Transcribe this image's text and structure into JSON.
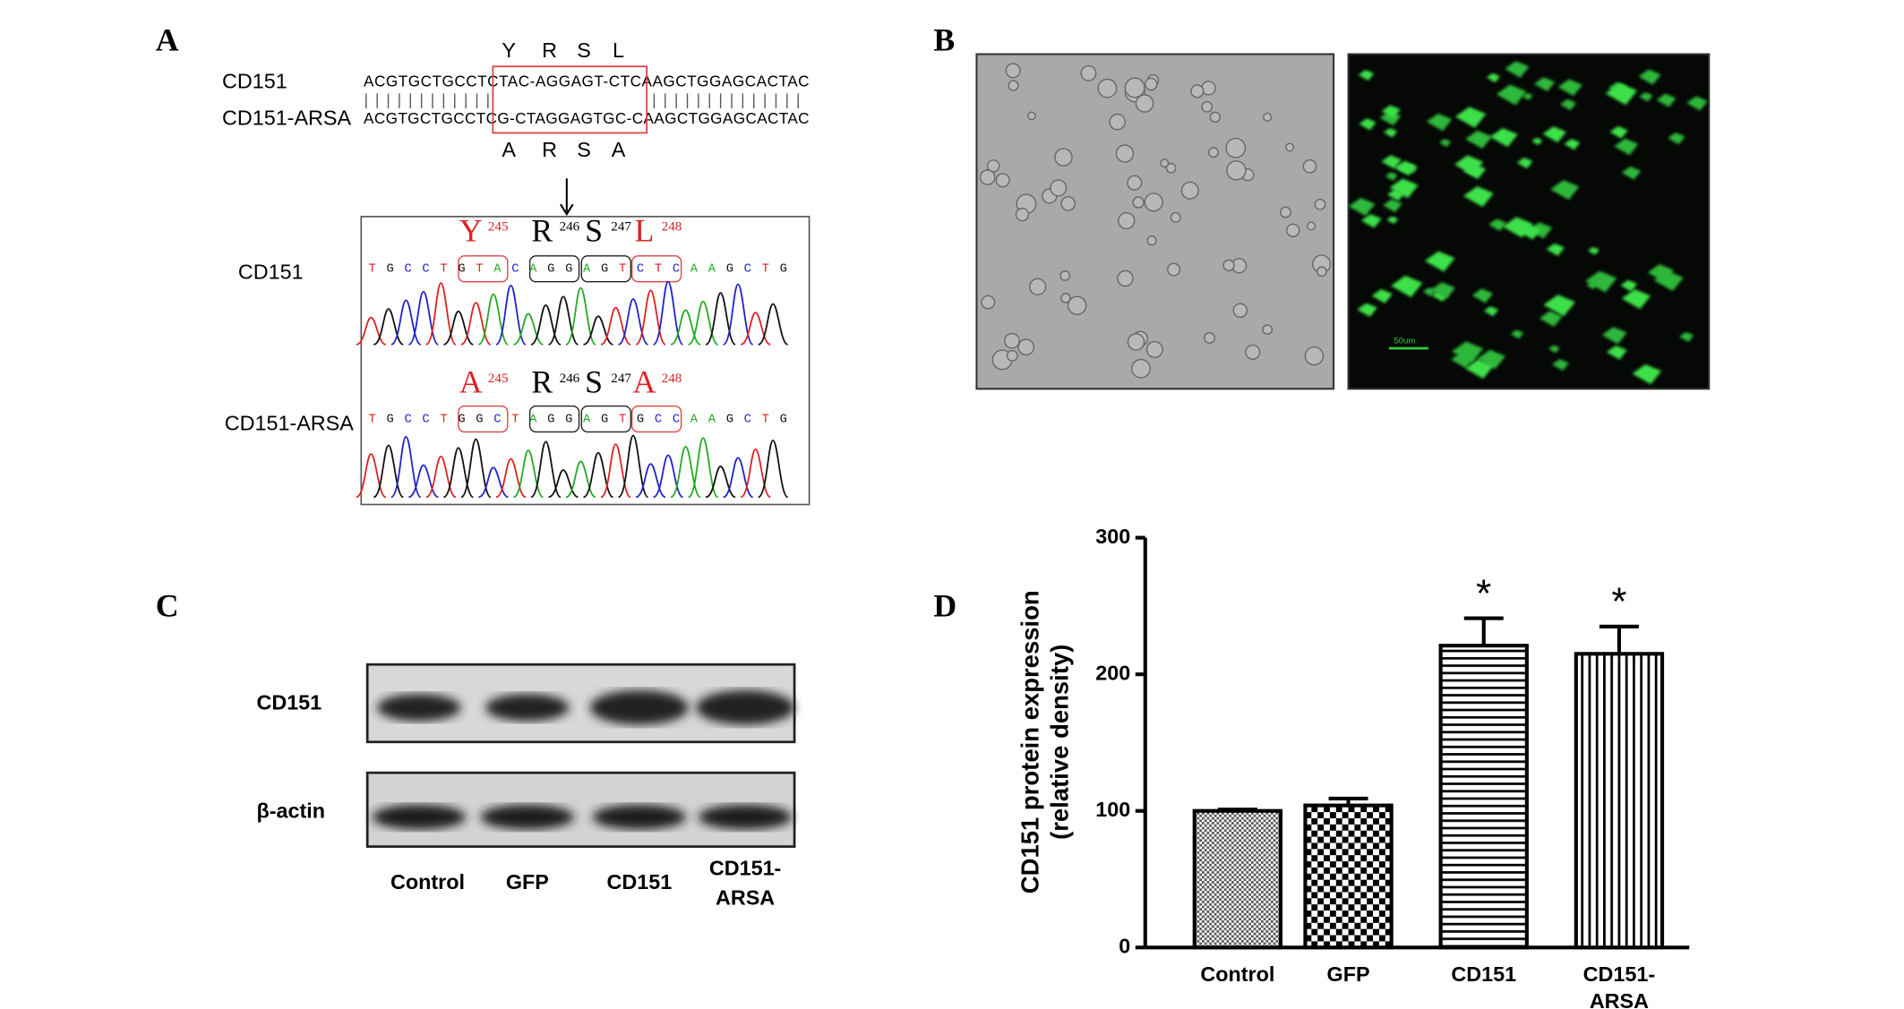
{
  "panels": {
    "A": {
      "label": "A",
      "seq_labels": [
        "CD151",
        "CD151-ARSA"
      ],
      "seq1": "ACGTGCTGCCTCTAC-AGGAGT-CTCAAGCTGGAGCACTAC",
      "seq2": "ACGTGCTGCCTCG-CTAGGAGTGC-CAAGCTGGAGCACTAC",
      "aa_top": [
        "Y",
        "R",
        "S",
        "L"
      ],
      "aa_bottom": [
        "A",
        "R",
        "S",
        "A"
      ],
      "chrom_labels": [
        "CD151",
        "CD151-ARSA"
      ],
      "chrom1_residues": [
        {
          "aa": "Y",
          "pos": "245"
        },
        {
          "aa": "R",
          "pos": "246"
        },
        {
          "aa": "S",
          "pos": "247"
        },
        {
          "aa": "L",
          "pos": "248"
        }
      ],
      "chrom2_residues": [
        {
          "aa": "A",
          "pos": "245"
        },
        {
          "aa": "R",
          "pos": "246"
        },
        {
          "aa": "S",
          "pos": "247"
        },
        {
          "aa": "A",
          "pos": "248"
        }
      ],
      "chrom1_bases": "TGCCTGTACAGGAGTCTCAAGCTG",
      "chrom2_bases": "TGCCTGGCTAGGAGTGCCAAGCTG"
    },
    "B": {
      "label": "B",
      "scale_bar": "50um"
    },
    "C": {
      "label": "C",
      "rows": [
        "CD151",
        "β-actin"
      ],
      "lanes": [
        "Control",
        "GFP",
        "CD151",
        "CD151-\nARSA"
      ]
    },
    "D": {
      "label": "D"
    }
  },
  "chart_data": {
    "type": "bar",
    "ylabel": [
      "CD151 protein expression",
      "(relative density)"
    ],
    "categories": [
      "Control",
      "GFP",
      "CD151",
      "CD151-\nARSA"
    ],
    "values": [
      100,
      104,
      221,
      215
    ],
    "errors": [
      1,
      5,
      20,
      20
    ],
    "significance": [
      null,
      null,
      "*",
      "*"
    ],
    "color": "#000000",
    "ylim": [
      0,
      300
    ],
    "yticks": [
      0,
      100,
      200,
      300
    ]
  }
}
